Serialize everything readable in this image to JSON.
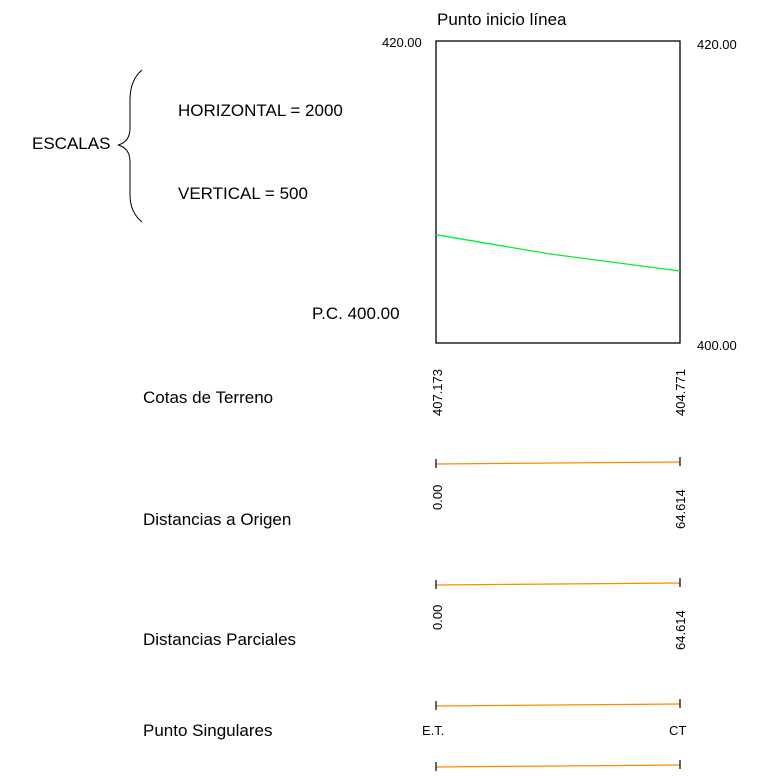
{
  "profile": {
    "title": "Punto inicio línea",
    "top_left_elev": "420.00",
    "top_right_elev": "420.00",
    "bottom_right_elev": "400.00",
    "pc_label": "P.C. 400.00",
    "elev_min": 400,
    "elev_max": 420,
    "dist_start": 0,
    "dist_end": 64.614,
    "ground_line": {
      "color": "#00ee33",
      "points": [
        [
          0,
          407.173
        ],
        [
          30,
          405.9
        ],
        [
          64.614,
          404.771
        ]
      ]
    }
  },
  "scales": {
    "title": "ESCALAS",
    "horizontal": "HORIZONTAL = 2000",
    "vertical": "VERTICAL = 500"
  },
  "guitar": {
    "line_color": "#ff8800",
    "rows": [
      {
        "label": "Cotas de Terreno",
        "left": "407.173",
        "right": "404.771"
      },
      {
        "label": "Distancias a Origen",
        "left": "0.00",
        "right": "64.614"
      },
      {
        "label": "Distancias Parciales",
        "left": "0.00",
        "right": "64.614"
      },
      {
        "label": "Punto Singulares",
        "left": "E.T.",
        "right": "CT"
      }
    ]
  }
}
